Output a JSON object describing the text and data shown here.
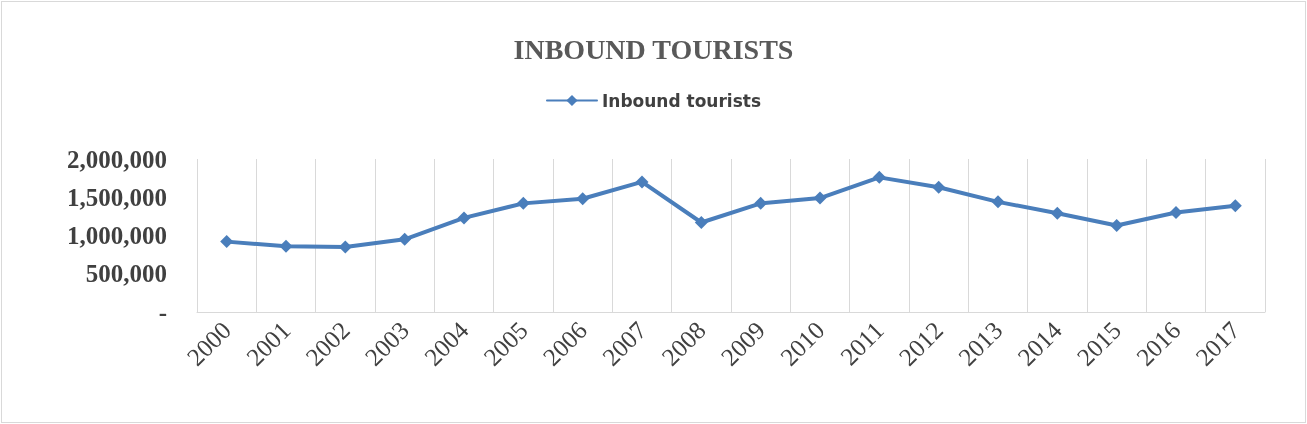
{
  "chart_data": {
    "type": "line",
    "title": "INBOUND TOURISTS",
    "categories": [
      "2000",
      "2001",
      "2002",
      "2003",
      "2004",
      "2005",
      "2006",
      "2007",
      "2008",
      "2009",
      "2010",
      "2011",
      "2012",
      "2013",
      "2014",
      "2015",
      "2016",
      "2017"
    ],
    "series": [
      {
        "name": "Inbound tourists",
        "color": "#4a7ebb",
        "values": [
          920000,
          860000,
          850000,
          950000,
          1230000,
          1420000,
          1480000,
          1700000,
          1170000,
          1420000,
          1490000,
          1760000,
          1630000,
          1440000,
          1290000,
          1130000,
          1300000,
          1390000
        ]
      }
    ],
    "ylim": [
      0,
      2000000
    ],
    "yticks": [
      {
        "value": 0,
        "label": "-"
      },
      {
        "value": 500000,
        "label": "500,000"
      },
      {
        "value": 1000000,
        "label": "1,000,000"
      },
      {
        "value": 1500000,
        "label": "1,500,000"
      },
      {
        "value": 2000000,
        "label": "2,000,000"
      }
    ],
    "grid": "x",
    "legend": "top",
    "marker": "diamond",
    "line_style": "solid"
  }
}
